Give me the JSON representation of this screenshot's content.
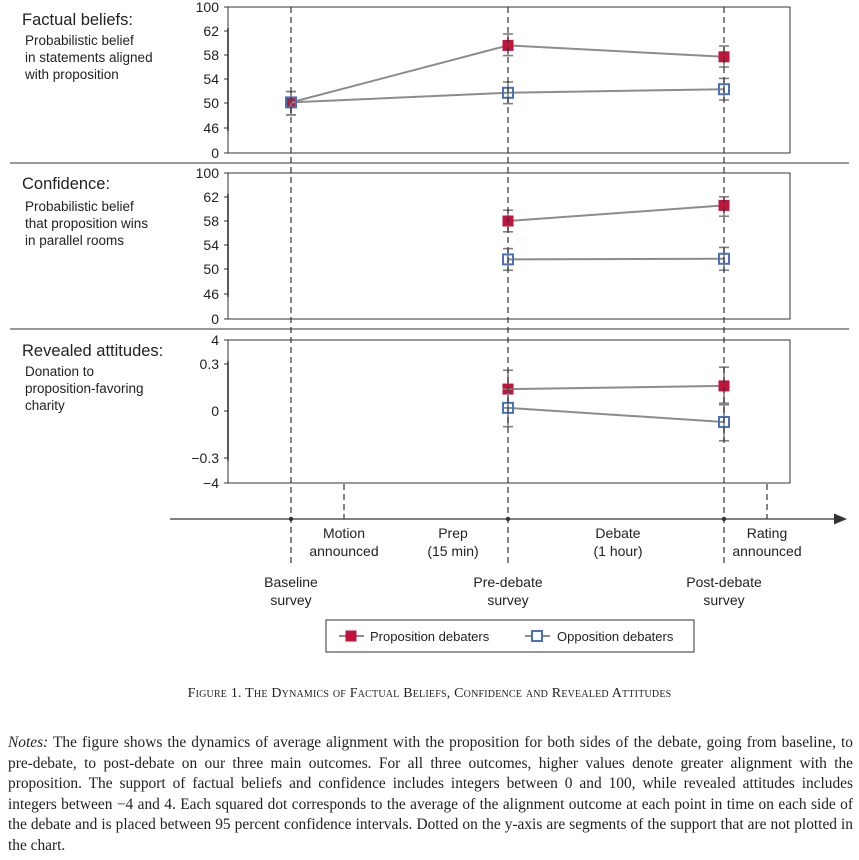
{
  "chart_data": [
    {
      "type": "scatter",
      "title": "Factual beliefs:",
      "subtitle": "Probabilistic belief in statements aligned with proposition",
      "y_ticks": [
        "100",
        "62",
        "58",
        "54",
        "50",
        "46",
        "0"
      ],
      "x": [
        "Baseline survey",
        "Pre-debate survey",
        "Post-debate survey"
      ],
      "series": [
        {
          "name": "Proposition debaters",
          "values": [
            50.1,
            59.6,
            57.7
          ],
          "ci_low": [
            48.1,
            57.9,
            56.0
          ],
          "ci_high": [
            51.9,
            61.5,
            59.5
          ]
        },
        {
          "name": "Opposition debaters",
          "values": [
            50.1,
            51.7,
            52.3
          ],
          "ci_low": [
            48.1,
            49.9,
            50.5
          ],
          "ci_high": [
            51.9,
            53.5,
            54.1
          ]
        }
      ]
    },
    {
      "type": "scatter",
      "title": "Confidence:",
      "subtitle": "Probabilistic belief that proposition wins in parallel rooms",
      "y_ticks": [
        "100",
        "62",
        "58",
        "54",
        "50",
        "46",
        "0"
      ],
      "x": [
        "Baseline survey",
        "Pre-debate survey",
        "Post-debate survey"
      ],
      "series": [
        {
          "name": "Proposition debaters",
          "values": [
            null,
            58.0,
            60.6
          ],
          "ci_low": [
            null,
            56.2,
            58.8
          ],
          "ci_high": [
            null,
            59.8,
            62.4
          ]
        },
        {
          "name": "Opposition debaters",
          "values": [
            null,
            51.6,
            51.7
          ],
          "ci_low": [
            null,
            49.8,
            49.8
          ],
          "ci_high": [
            null,
            53.4,
            53.6
          ]
        }
      ]
    },
    {
      "type": "scatter",
      "title": "Revealed attitudes:",
      "subtitle": "Donation to proposition-favoring charity",
      "y_ticks": [
        "4",
        "0.3",
        "0",
        "−0.3",
        "−4"
      ],
      "x": [
        "Baseline survey",
        "Pre-debate survey",
        "Post-debate survey"
      ],
      "series": [
        {
          "name": "Proposition debaters",
          "values": [
            null,
            0.14,
            0.16
          ],
          "ci_low": [
            null,
            0.02,
            0.04
          ],
          "ci_high": [
            null,
            0.26,
            0.28
          ]
        },
        {
          "name": "Opposition debaters",
          "values": [
            null,
            0.02,
            -0.07
          ],
          "ci_low": [
            null,
            -0.1,
            -0.19
          ],
          "ci_high": [
            null,
            0.14,
            0.05
          ]
        }
      ]
    }
  ],
  "timeline": {
    "events": [
      "Baseline survey",
      "Motion announced",
      "Prep (15 min)",
      "Pre-debate survey",
      "Debate (1 hour)",
      "Post-debate survey",
      "Rating announced"
    ]
  },
  "legend": {
    "items": [
      {
        "label": "Proposition debaters",
        "color": "#c0143c",
        "marker": "filled-square"
      },
      {
        "label": "Opposition debaters",
        "color": "#4a72b8",
        "marker": "open-square"
      }
    ]
  },
  "caption": "Figure 1. The Dynamics of Factual Beliefs, Confidence and Revealed Attitudes",
  "notes": {
    "label": "Notes:",
    "text": "The figure shows the dynamics of average alignment with the proposition for both sides of the debate, going from baseline, to pre-debate, to post-debate on our three main outcomes. For all three outcomes, higher values denote greater alignment with the proposition. The support of factual beliefs and confidence includes integers between 0 and 100, while revealed attitudes includes integers between −4 and 4. Each squared dot corresponds to the average of the alignment outcome at each point in time on each side of the debate and is placed between 95 percent confidence intervals. Dotted on the y-axis are segments of the support that are not plotted in the chart."
  },
  "colors": {
    "proposition": "#c0143c",
    "opposition": "#4a72b8",
    "connector": "#8c8c8c",
    "error_bar": "#808080",
    "axis": "#333333"
  }
}
